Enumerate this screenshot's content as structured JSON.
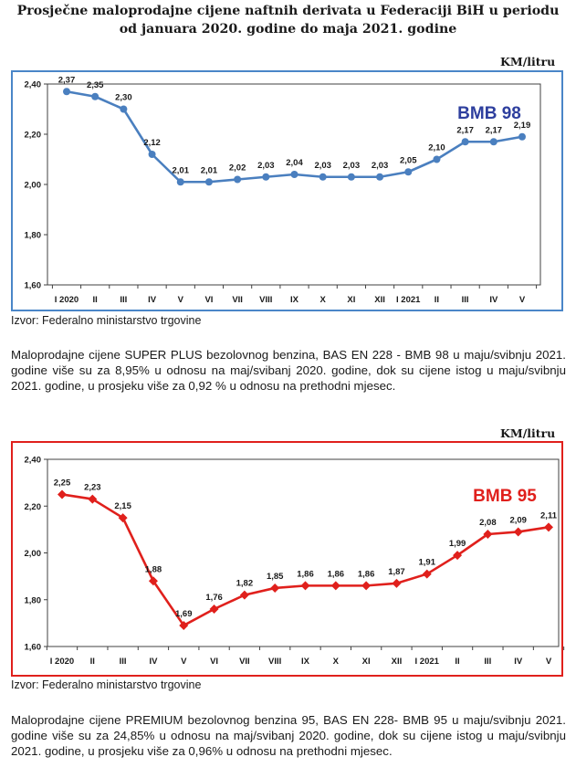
{
  "page": {
    "title_line1": "Prosječne maloprodajne cijene naftnih derivata u Federaciji BiH u periodu",
    "title_line2": "od januara 2020. godine do maja 2021. godine"
  },
  "sections": [
    {
      "unit_label": "KM/litru",
      "source": "Izvor: Federalno ministarstvo trgovine",
      "paragraph": "Maloprodajne cijene SUPER PLUS bezolovnog benzina, BAS EN 228 - BMB 98 u maju/svibnju 2021. godine više su za 8,95% u odnosu na maj/svibanj 2020. godine, dok su cijene istog u maju/svibnju 2021. godine, u prosjeku više za 0,92 % u odnosu na prethodni mjesec."
    },
    {
      "unit_label": "KM/litru",
      "source": "Izvor: Federalno ministarstvo trgovine",
      "paragraph": "Maloprodajne cijene PREMIUM bezolovnog benzina 95, BAS EN 228- BMB 95 u maju/svibnju 2021. godine više su za 24,85% u odnosu na maj/svibanj 2020. godine, dok su cijene istog u maju/svibnju 2021. godine, u prosjeku više za 0,96% u odnosu na prethodni mjesec."
    }
  ],
  "chart_data": [
    {
      "type": "line",
      "title": "BMB 98",
      "color": "#4a7fbf",
      "title_color": "#2e3f9e",
      "categories": [
        "I 2020",
        "II",
        "III",
        "IV",
        "V",
        "VI",
        "VII",
        "VIII",
        "IX",
        "X",
        "XI",
        "XII",
        "I 2021",
        "II",
        "III",
        "IV",
        "V"
      ],
      "values": [
        2.37,
        2.35,
        2.3,
        2.12,
        2.01,
        2.01,
        2.02,
        2.03,
        2.04,
        2.03,
        2.03,
        2.03,
        2.05,
        2.1,
        2.17,
        2.17,
        2.19
      ],
      "data_labels": [
        "2,37",
        "2,35",
        "2,30",
        "2,12",
        "2,01",
        "2,01",
        "2,02",
        "2,03",
        "2,04",
        "2,03",
        "2,03",
        "2,03",
        "2,05",
        "2,10",
        "2,17",
        "2,17",
        "2,19"
      ],
      "y_ticks": [
        "2,40",
        "2,20",
        "2,00",
        "1,80",
        "1,60"
      ],
      "ylim": [
        1.6,
        2.4
      ],
      "marker": "circle",
      "grid": false
    },
    {
      "type": "line",
      "title": "BMB 95",
      "color": "#e0201c",
      "title_color": "#e0201c",
      "categories": [
        "I 2020",
        "II",
        "III",
        "IV",
        "V",
        "VI",
        "VII",
        "VIII",
        "IX",
        "X",
        "XI",
        "XII",
        "I 2021",
        "II",
        "III",
        "IV",
        "V"
      ],
      "values": [
        2.25,
        2.23,
        2.15,
        1.88,
        1.69,
        1.76,
        1.82,
        1.85,
        1.86,
        1.86,
        1.86,
        1.87,
        1.91,
        1.99,
        2.08,
        2.09,
        2.11
      ],
      "data_labels": [
        "2,25",
        "2,23",
        "2,15",
        "1,88",
        "1,69",
        "1,76",
        "1,82",
        "1,85",
        "1,86",
        "1,86",
        "1,86",
        "1,87",
        "1,91",
        "1,99",
        "2,08",
        "2,09",
        "2,11"
      ],
      "y_ticks": [
        "2,40",
        "2,20",
        "2,00",
        "1,80",
        "1,60"
      ],
      "ylim": [
        1.6,
        2.4
      ],
      "marker": "diamond",
      "grid": false
    }
  ]
}
